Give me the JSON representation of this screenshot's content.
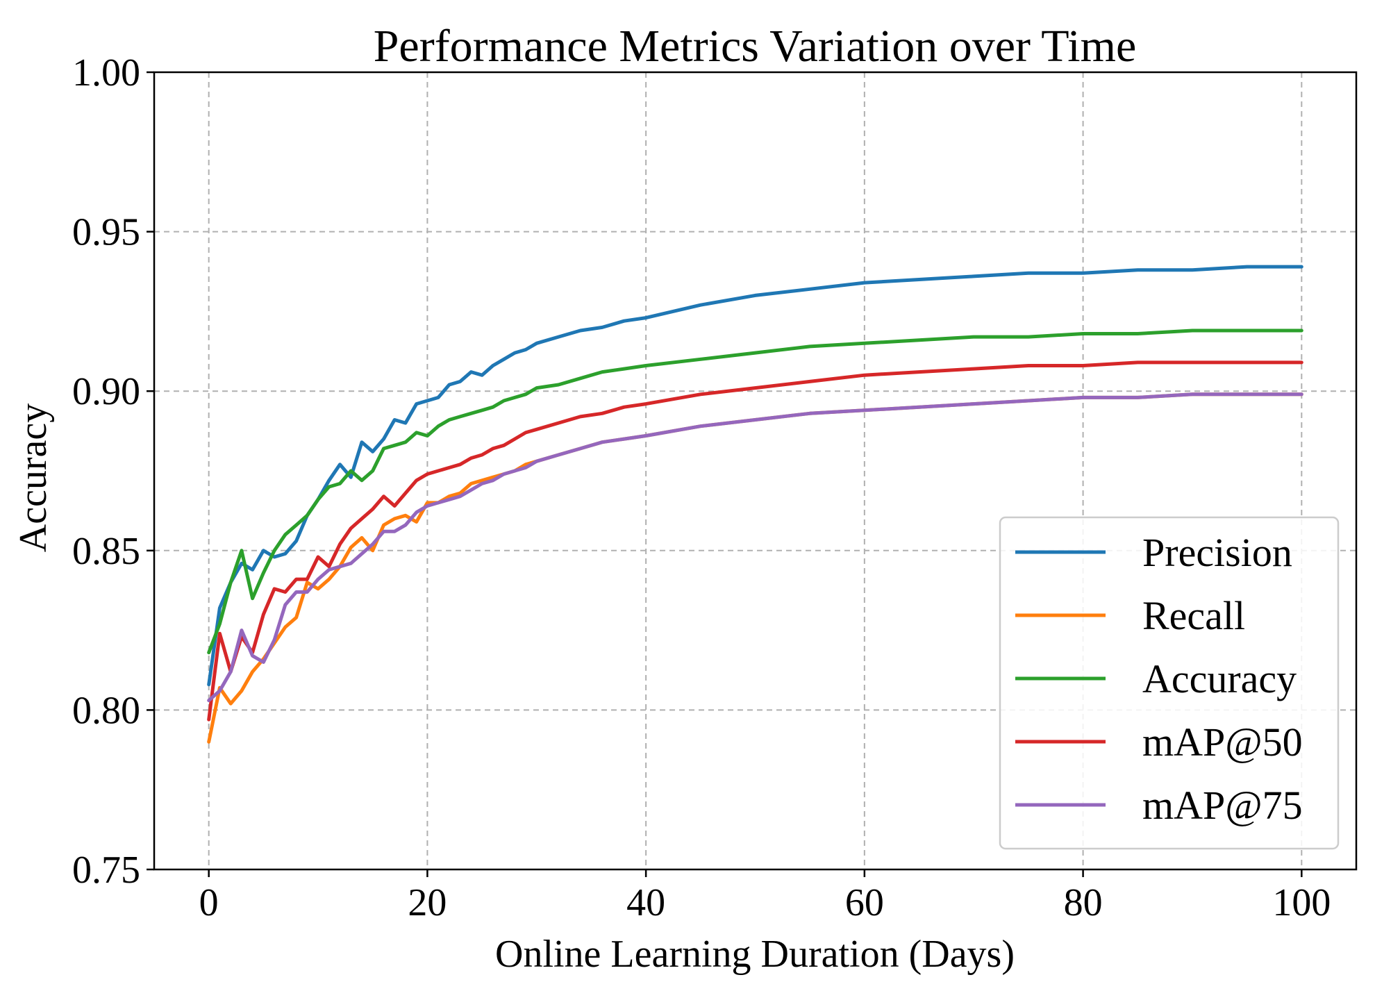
{
  "chart_data": {
    "type": "line",
    "title": "Performance Metrics Variation over Time",
    "xlabel": "Online Learning Duration (Days)",
    "ylabel": "Accuracy",
    "xlim": [
      -5,
      105
    ],
    "ylim": [
      0.75,
      1.0
    ],
    "xticks": [
      0,
      20,
      40,
      60,
      80,
      100
    ],
    "xtick_labels": [
      "0",
      "20",
      "40",
      "60",
      "80",
      "100"
    ],
    "yticks": [
      0.75,
      0.8,
      0.85,
      0.9,
      0.95,
      1.0
    ],
    "ytick_labels": [
      "0.75",
      "0.80",
      "0.85",
      "0.90",
      "0.95",
      "1.00"
    ],
    "grid": true,
    "legend_position": "lower-right",
    "series": [
      {
        "name": "Precision",
        "color": "#1f77b4",
        "x": [
          0,
          1,
          2,
          3,
          4,
          5,
          6,
          7,
          8,
          9,
          10,
          11,
          12,
          13,
          14,
          15,
          16,
          17,
          18,
          19,
          20,
          21,
          22,
          23,
          24,
          25,
          26,
          27,
          28,
          29,
          30,
          32,
          34,
          36,
          38,
          40,
          45,
          50,
          55,
          60,
          65,
          70,
          75,
          80,
          85,
          90,
          95,
          100
        ],
        "values": [
          0.808,
          0.832,
          0.84,
          0.846,
          0.844,
          0.85,
          0.848,
          0.849,
          0.853,
          0.861,
          0.866,
          0.872,
          0.877,
          0.873,
          0.884,
          0.881,
          0.885,
          0.891,
          0.89,
          0.896,
          0.897,
          0.898,
          0.902,
          0.903,
          0.906,
          0.905,
          0.908,
          0.91,
          0.912,
          0.913,
          0.915,
          0.917,
          0.919,
          0.92,
          0.922,
          0.923,
          0.927,
          0.93,
          0.932,
          0.934,
          0.935,
          0.936,
          0.937,
          0.937,
          0.938,
          0.938,
          0.939,
          0.939
        ]
      },
      {
        "name": "Recall",
        "color": "#ff7f0e",
        "x": [
          0,
          1,
          2,
          3,
          4,
          5,
          6,
          7,
          8,
          9,
          10,
          11,
          12,
          13,
          14,
          15,
          16,
          17,
          18,
          19,
          20,
          21,
          22,
          23,
          24,
          25,
          26,
          27,
          28,
          29,
          30,
          32,
          34,
          36,
          38,
          40,
          45,
          50,
          55,
          60,
          65,
          70,
          75,
          80,
          85,
          90,
          95,
          100
        ],
        "values": [
          0.79,
          0.807,
          0.802,
          0.806,
          0.812,
          0.816,
          0.821,
          0.826,
          0.829,
          0.84,
          0.838,
          0.841,
          0.845,
          0.851,
          0.854,
          0.85,
          0.858,
          0.86,
          0.861,
          0.859,
          0.865,
          0.865,
          0.867,
          0.868,
          0.871,
          0.872,
          0.873,
          0.874,
          0.875,
          0.877,
          0.878,
          0.88,
          0.882,
          0.884,
          0.885,
          0.886,
          0.889,
          0.891,
          0.893,
          0.894,
          0.895,
          0.896,
          0.897,
          0.898,
          0.898,
          0.899,
          0.899,
          0.899
        ]
      },
      {
        "name": "Accuracy",
        "color": "#2ca02c",
        "x": [
          0,
          1,
          2,
          3,
          4,
          5,
          6,
          7,
          8,
          9,
          10,
          11,
          12,
          13,
          14,
          15,
          16,
          17,
          18,
          19,
          20,
          21,
          22,
          23,
          24,
          25,
          26,
          27,
          28,
          29,
          30,
          32,
          34,
          36,
          38,
          40,
          45,
          50,
          55,
          60,
          65,
          70,
          75,
          80,
          85,
          90,
          95,
          100
        ],
        "values": [
          0.818,
          0.827,
          0.84,
          0.85,
          0.835,
          0.843,
          0.85,
          0.855,
          0.858,
          0.861,
          0.866,
          0.87,
          0.871,
          0.875,
          0.872,
          0.875,
          0.882,
          0.883,
          0.884,
          0.887,
          0.886,
          0.889,
          0.891,
          0.892,
          0.893,
          0.894,
          0.895,
          0.897,
          0.898,
          0.899,
          0.901,
          0.902,
          0.904,
          0.906,
          0.907,
          0.908,
          0.91,
          0.912,
          0.914,
          0.915,
          0.916,
          0.917,
          0.917,
          0.918,
          0.918,
          0.919,
          0.919,
          0.919
        ]
      },
      {
        "name": "mAP@50",
        "color": "#d62728",
        "x": [
          0,
          1,
          2,
          3,
          4,
          5,
          6,
          7,
          8,
          9,
          10,
          11,
          12,
          13,
          14,
          15,
          16,
          17,
          18,
          19,
          20,
          21,
          22,
          23,
          24,
          25,
          26,
          27,
          28,
          29,
          30,
          32,
          34,
          36,
          38,
          40,
          45,
          50,
          55,
          60,
          65,
          70,
          75,
          80,
          85,
          90,
          95,
          100
        ],
        "values": [
          0.797,
          0.824,
          0.812,
          0.823,
          0.818,
          0.83,
          0.838,
          0.837,
          0.841,
          0.841,
          0.848,
          0.845,
          0.852,
          0.857,
          0.86,
          0.863,
          0.867,
          0.864,
          0.868,
          0.872,
          0.874,
          0.875,
          0.876,
          0.877,
          0.879,
          0.88,
          0.882,
          0.883,
          0.885,
          0.887,
          0.888,
          0.89,
          0.892,
          0.893,
          0.895,
          0.896,
          0.899,
          0.901,
          0.903,
          0.905,
          0.906,
          0.907,
          0.908,
          0.908,
          0.909,
          0.909,
          0.909,
          0.909
        ]
      },
      {
        "name": "mAP@75",
        "color": "#9467bd",
        "x": [
          0,
          1,
          2,
          3,
          4,
          5,
          6,
          7,
          8,
          9,
          10,
          11,
          12,
          13,
          14,
          15,
          16,
          17,
          18,
          19,
          20,
          21,
          22,
          23,
          24,
          25,
          26,
          27,
          28,
          29,
          30,
          32,
          34,
          36,
          38,
          40,
          45,
          50,
          55,
          60,
          65,
          70,
          75,
          80,
          85,
          90,
          95,
          100
        ],
        "values": [
          0.803,
          0.806,
          0.812,
          0.825,
          0.817,
          0.815,
          0.822,
          0.833,
          0.837,
          0.837,
          0.841,
          0.844,
          0.845,
          0.846,
          0.849,
          0.852,
          0.856,
          0.856,
          0.858,
          0.862,
          0.864,
          0.865,
          0.866,
          0.867,
          0.869,
          0.871,
          0.872,
          0.874,
          0.875,
          0.876,
          0.878,
          0.88,
          0.882,
          0.884,
          0.885,
          0.886,
          0.889,
          0.891,
          0.893,
          0.894,
          0.895,
          0.896,
          0.897,
          0.898,
          0.898,
          0.899,
          0.899,
          0.899
        ]
      }
    ]
  }
}
